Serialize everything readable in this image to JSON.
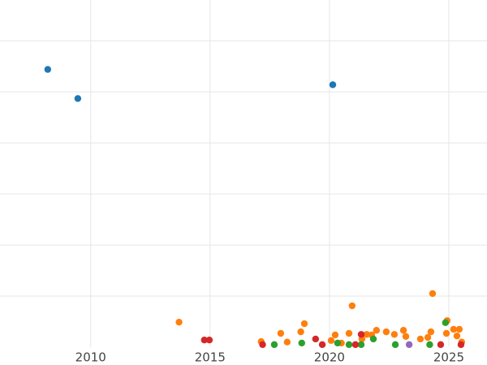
{
  "chart_data": {
    "type": "scatter",
    "xlim": [
      2006.2,
      2026.6
    ],
    "xticks": [
      2010,
      2015,
      2020,
      2025
    ],
    "ylim": [
      0,
      6.8
    ],
    "yticks": [
      1,
      2,
      3,
      4,
      5,
      6
    ],
    "grid": true,
    "series": [
      {
        "color": "#1f77b4",
        "x": [
          2008.2,
          2009.46,
          2020.14
        ],
        "values": [
          5.44,
          4.87,
          5.14
        ]
      },
      {
        "color": "#ff7f0e",
        "x": [
          2013.7,
          2020.95,
          2024.32,
          2018.95,
          2017.96,
          2017.14,
          2018.23,
          2018.8,
          2020.24,
          2020.82,
          2021.56,
          2021.97,
          2022.38,
          2022.72,
          2023.1,
          2023.2,
          2023.81,
          2024.25,
          2024.93,
          2024.9,
          2025.2,
          2025.44,
          2025.34,
          2025.54,
          2021.36,
          2021.77,
          2024.12,
          2020.07,
          2020.5
        ],
        "values": [
          0.49,
          0.81,
          1.05,
          0.46,
          0.27,
          0.11,
          0.1,
          0.3,
          0.24,
          0.27,
          0.25,
          0.33,
          0.3,
          0.25,
          0.33,
          0.21,
          0.16,
          0.3,
          0.52,
          0.27,
          0.35,
          0.35,
          0.22,
          0.1,
          0.16,
          0.24,
          0.19,
          0.13,
          0.08
        ]
      },
      {
        "color": "#2ca02c",
        "x": [
          2018.84,
          2024.86,
          2021.84,
          2020.34,
          2020.82,
          2017.69,
          2022.76,
          2024.2,
          2021.33
        ],
        "values": [
          0.08,
          0.48,
          0.16,
          0.08,
          0.05,
          0.05,
          0.05,
          0.05,
          0.05
        ]
      },
      {
        "color": "#d62728",
        "x": [
          2014.76,
          2014.97,
          2019.42,
          2021.33,
          2019.7,
          2021.09,
          2017.2,
          2024.66,
          2025.51
        ],
        "values": [
          0.14,
          0.14,
          0.16,
          0.25,
          0.05,
          0.05,
          0.05,
          0.05,
          0.05
        ]
      },
      {
        "color": "#9467bd",
        "x": [
          2023.34
        ],
        "values": [
          0.05
        ]
      }
    ]
  }
}
